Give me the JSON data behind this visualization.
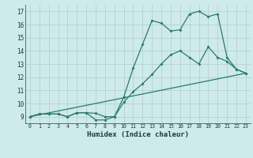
{
  "bg_color": "#ceeaea",
  "grid_color": "#b8d4d4",
  "line_color": "#2a7a6e",
  "xlabel": "Humidex (Indice chaleur)",
  "xlim": [
    -0.5,
    23.5
  ],
  "ylim": [
    8.5,
    17.5
  ],
  "xticks": [
    0,
    1,
    2,
    3,
    4,
    5,
    6,
    7,
    8,
    9,
    10,
    11,
    12,
    13,
    14,
    15,
    16,
    17,
    18,
    19,
    20,
    21,
    22,
    23
  ],
  "yticks": [
    9,
    10,
    11,
    12,
    13,
    14,
    15,
    16,
    17
  ],
  "line1_x": [
    0,
    1,
    2,
    3,
    4,
    5,
    6,
    7,
    8,
    9,
    10,
    11,
    12,
    13,
    14,
    15,
    16,
    17,
    18,
    19,
    20,
    21,
    22,
    23
  ],
  "line1_y": [
    9.0,
    9.2,
    9.2,
    9.2,
    9.0,
    9.3,
    9.3,
    8.75,
    8.75,
    9.0,
    10.5,
    12.7,
    14.5,
    16.3,
    16.1,
    15.5,
    15.6,
    16.8,
    17.0,
    16.6,
    16.8,
    13.5,
    12.6,
    12.3
  ],
  "line2_x": [
    0,
    23
  ],
  "line2_y": [
    9.0,
    12.3
  ],
  "line3_x": [
    0,
    1,
    2,
    3,
    4,
    5,
    6,
    7,
    8,
    9,
    10,
    11,
    12,
    13,
    14,
    15,
    16,
    17,
    18,
    19,
    20,
    21,
    22,
    23
  ],
  "line3_y": [
    9.0,
    9.2,
    9.2,
    9.2,
    9.0,
    9.3,
    9.3,
    9.25,
    9.0,
    9.0,
    10.1,
    10.9,
    11.5,
    12.2,
    13.0,
    13.7,
    14.0,
    13.5,
    13.0,
    14.3,
    13.5,
    13.2,
    12.6,
    12.3
  ]
}
